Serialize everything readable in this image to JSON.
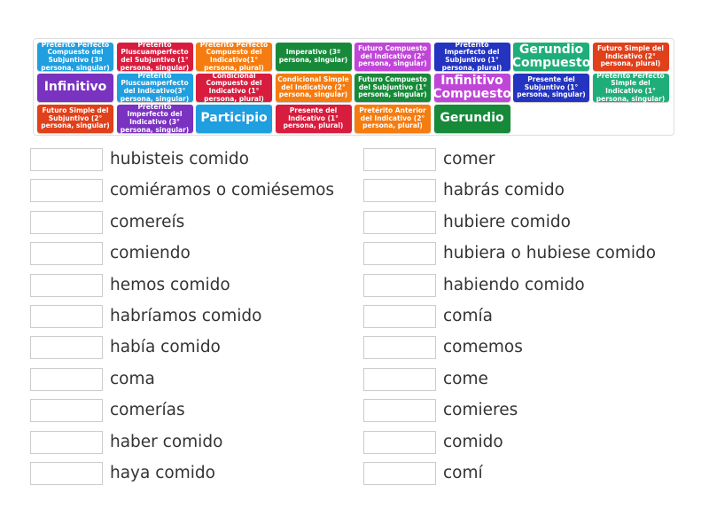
{
  "tiles": [
    {
      "label": "Pretérito Perfecto Compuesto del Subjuntivo (3ª persona, singular)",
      "color": "#1f9ee0",
      "big": false
    },
    {
      "label": "Pretérito Pluscuamperfecto del Subjuntivo (1° persona, singular)",
      "color": "#d81c3e",
      "big": false
    },
    {
      "label": "Pretérito Perfecto Compuesto del Indicativo(1° persona, plural)",
      "color": "#f57c10",
      "big": false
    },
    {
      "label": "Imperativo (3º persona, singular)",
      "color": "#178a3a",
      "big": false
    },
    {
      "label": "Futuro Compuesto del Indicativo (2° persona, singular)",
      "color": "#c046d8",
      "big": false
    },
    {
      "label": "Pretérito Imperfecto del Subjuntivo (1° persona, plural)",
      "color": "#2434c0",
      "big": false
    },
    {
      "label": "Gerundio Compuesto",
      "color": "#1fae7a",
      "big": true
    },
    {
      "label": "Futuro Simple del Indicativo (2° persona, plural)",
      "color": "#e0401a",
      "big": false
    },
    {
      "label": "Infinitivo",
      "color": "#7a32c0",
      "big": true
    },
    {
      "label": "Pretérito Pluscuamperfecto del Indicativo(3° persona, singular)",
      "color": "#1f9ee0",
      "big": false
    },
    {
      "label": "Condicional Compuesto del Indicativo (1° persona, plural)",
      "color": "#d81c3e",
      "big": false
    },
    {
      "label": "Condicional Simple del Indicativo (2° persona, singular)",
      "color": "#f57c10",
      "big": false
    },
    {
      "label": "Futuro Compuesto del Subjuntivo (1° persona, singular)",
      "color": "#178a3a",
      "big": false
    },
    {
      "label": "Infinitivo Compuesto",
      "color": "#c046d8",
      "big": true
    },
    {
      "label": "Presente del Subjuntivo (1° persona, singular)",
      "color": "#2434c0",
      "big": false
    },
    {
      "label": "Pretérito Perfecto Simple del Indicativo (1° persona, singular)",
      "color": "#1fae7a",
      "big": false
    },
    {
      "label": "Futuro Simple del Subjuntivo (2° persona, singular)",
      "color": "#e0401a",
      "big": false
    },
    {
      "label": "Pretérito Imperfecto del Indicativo (3° persona, singular)",
      "color": "#7a32c0",
      "big": false
    },
    {
      "label": "Participio",
      "color": "#1f9ee0",
      "big": true
    },
    {
      "label": "Presente del Indicativo (1° persona, plural)",
      "color": "#d81c3e",
      "big": false
    },
    {
      "label": "Pretérito Anterior del Indicativo (2° persona, plural)",
      "color": "#f57c10",
      "big": false
    },
    {
      "label": "Gerundio",
      "color": "#178a3a",
      "big": true
    }
  ],
  "left_items": [
    "hubisteis comido",
    "comiéramos o comiésemos",
    "comereís",
    "comiendo",
    "hemos comido",
    "habríamos comido",
    "había comido",
    "coma",
    "comerías",
    "haber comido",
    "haya comido"
  ],
  "right_items": [
    "comer",
    "habrás comido",
    "hubiere comido",
    "hubiera o hubiese comido",
    "habiendo comido",
    "comía",
    "comemos",
    "come",
    "comieres",
    "comido",
    "comí"
  ]
}
